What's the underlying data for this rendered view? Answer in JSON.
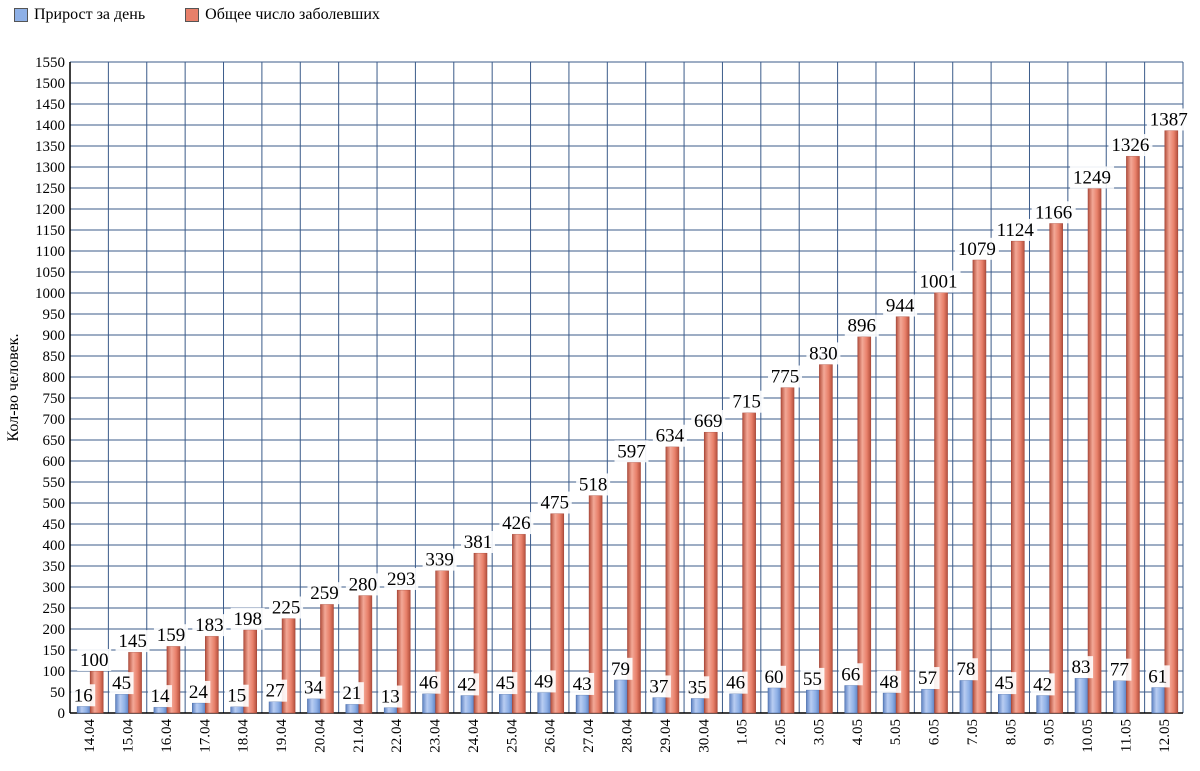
{
  "chart_data": {
    "type": "bar",
    "ylabel": "Кол-во человек.",
    "ylim": [
      0,
      1550
    ],
    "ytick_step": 50,
    "grid": true,
    "legend_position": "top-left",
    "categories": [
      "14.04",
      "15.04",
      "16.04",
      "17.04",
      "18.04",
      "19.04",
      "20.04",
      "21.04",
      "22.04",
      "23.04",
      "24.04",
      "25.04",
      "26.04",
      "27.04",
      "28.04",
      "29.04",
      "30.04",
      "1.05",
      "2.05",
      "3.05",
      "4.05",
      "5.05",
      "6.05",
      "7.05",
      "8.05",
      "9.05",
      "10.05",
      "11.05",
      "12.05"
    ],
    "series": [
      {
        "name": "Прирост за день",
        "color": "#8eb0e6",
        "values": [
          16,
          45,
          14,
          24,
          15,
          27,
          34,
          21,
          13,
          46,
          42,
          45,
          49,
          43,
          79,
          37,
          35,
          46,
          60,
          55,
          66,
          48,
          57,
          78,
          45,
          42,
          83,
          77,
          61
        ]
      },
      {
        "name": "Общее число заболевших",
        "color": "#e8806a",
        "values": [
          100,
          145,
          159,
          183,
          198,
          225,
          259,
          280,
          293,
          339,
          381,
          426,
          475,
          518,
          597,
          634,
          669,
          715,
          775,
          830,
          896,
          944,
          1001,
          1079,
          1124,
          1166,
          1249,
          1326,
          1387
        ]
      }
    ]
  }
}
